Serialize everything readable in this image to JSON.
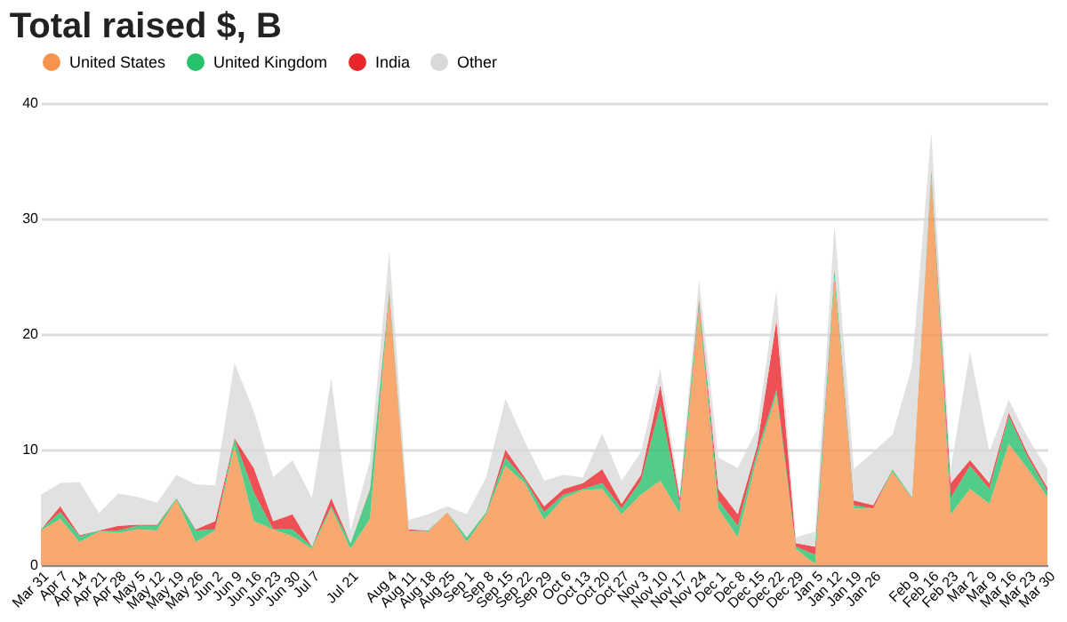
{
  "chart_data": {
    "type": "area",
    "title": "Total raised $, B",
    "stacked": true,
    "categories": [
      "Mar 31",
      "Apr 7",
      "Apr 14",
      "Apr 21",
      "Apr 28",
      "May 5",
      "May 12",
      "May 19",
      "May 26",
      "Jun 2",
      "Jun 9",
      "Jun 16",
      "Jun 23",
      "Jun 30",
      "Jul 7",
      null,
      "Jul 21",
      null,
      "Aug 4",
      "Aug 11",
      "Aug 18",
      "Aug 25",
      "Sep 1",
      "Sep 8",
      "Sep 15",
      "Sep 22",
      "Sep 29",
      "Oct 6",
      "Oct 13",
      "Oct 20",
      "Oct 27",
      "Nov 3",
      "Nov 10",
      "Nov 17",
      "Nov 24",
      "Dec 1",
      "Dec 8",
      "Dec 15",
      "Dec 22",
      "Dec 29",
      "Jan 5",
      "Jan 12",
      "Jan 19",
      "Jan 26",
      null,
      "Feb 9",
      "Feb 16",
      "Feb 23",
      "Mar 2",
      "Mar 9",
      "Mar 16",
      "Mar 23",
      "Mar 30"
    ],
    "series": [
      {
        "name": "United States",
        "color": "#f7934c",
        "values": [
          3.0,
          4.0,
          2.0,
          2.9,
          2.8,
          3.1,
          3.0,
          5.7,
          2.0,
          3.0,
          10.3,
          3.8,
          3.1,
          2.5,
          1.4,
          4.9,
          1.4,
          4.0,
          23.3,
          2.9,
          2.9,
          4.6,
          2.0,
          4.4,
          8.6,
          7.1,
          3.9,
          5.8,
          6.5,
          6.6,
          4.4,
          6.1,
          7.3,
          4.5,
          22.2,
          4.9,
          2.4,
          9.3,
          14.8,
          1.4,
          0.1,
          24.9,
          4.9,
          4.9,
          8.1,
          5.8,
          33.6,
          4.4,
          6.6,
          5.3,
          10.5,
          8.3,
          5.9
        ]
      },
      {
        "name": "United Kingdom",
        "color": "#27c06b",
        "values": [
          0.1,
          0.6,
          0.5,
          0.1,
          0.2,
          0.3,
          0.4,
          0.1,
          1.0,
          0.1,
          0.6,
          2.5,
          0,
          0.6,
          0.2,
          0.2,
          0.5,
          2.5,
          0.4,
          0.1,
          0.1,
          0,
          0.4,
          0.2,
          0.7,
          0.3,
          0.7,
          0.3,
          0.1,
          0.5,
          0.5,
          1.2,
          6.5,
          0.8,
          0.6,
          0.7,
          1.0,
          0.5,
          0.4,
          0.2,
          0.8,
          0.7,
          0.3,
          0,
          0.2,
          0.1,
          0.5,
          1.4,
          2.0,
          1.3,
          2.4,
          1.0,
          0.5
        ]
      },
      {
        "name": "India",
        "color": "#e8262b",
        "values": [
          0,
          0.5,
          0.1,
          0,
          0.4,
          0.1,
          0.1,
          0,
          0.1,
          0.7,
          0.1,
          2.1,
          0.7,
          1.3,
          0,
          0.7,
          0,
          0.1,
          0.2,
          0.1,
          0,
          0,
          0,
          0,
          0.7,
          0.2,
          0.5,
          0.5,
          0.5,
          1.2,
          0.4,
          0.5,
          1.8,
          0.5,
          0.3,
          1.0,
          1.0,
          0.5,
          6.0,
          0.3,
          0.7,
          0.1,
          0.4,
          0.3,
          0,
          0,
          0.2,
          1.3,
          0.5,
          0.5,
          0.3,
          0.3,
          0.3
        ]
      },
      {
        "name": "Other",
        "color": "#d9d9d9",
        "values": [
          3.0,
          2.0,
          4.6,
          1.5,
          2.8,
          2.4,
          1.9,
          2.0,
          3.9,
          3.1,
          6.5,
          4.9,
          3.8,
          4.7,
          4.2,
          10.4,
          1.1,
          2.4,
          3.3,
          0.8,
          1.4,
          0.5,
          2.0,
          3.0,
          4.4,
          3.1,
          2.2,
          1.2,
          0.5,
          3.1,
          2.0,
          2.0,
          1.4,
          0.5,
          1.6,
          2.7,
          4.0,
          1.5,
          2.6,
          0.5,
          1.3,
          3.8,
          2.7,
          4.6,
          3.0,
          11.3,
          3.2,
          1.2,
          9.4,
          2.7,
          1.1,
          1.4,
          1.6
        ]
      }
    ],
    "ylim": [
      0,
      40
    ],
    "yticks": [
      0,
      10,
      20,
      30,
      40
    ],
    "grid": "y",
    "legend": "top"
  }
}
